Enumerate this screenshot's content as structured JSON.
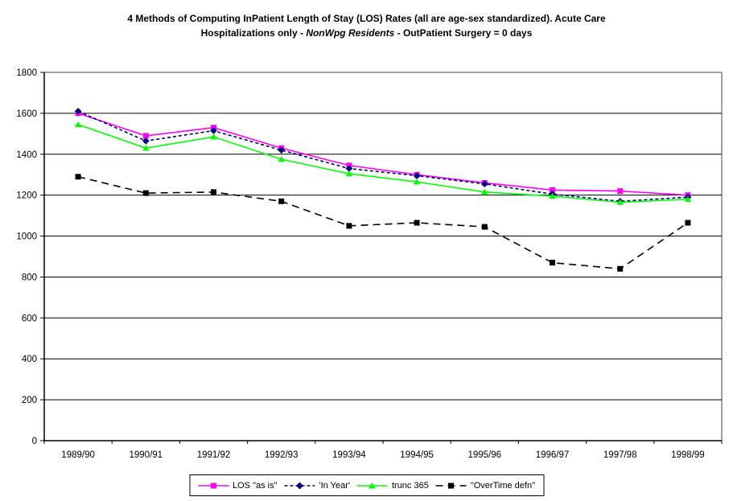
{
  "title": {
    "line1": "4 Methods of Computing InPatient Length of Stay (LOS) Rates (all are age-sex standardized). Acute Care",
    "line2_prefix": "Hospitalizations only - ",
    "line2_italic": "NonWpg Residents",
    "line2_suffix": " - OutPatient Surgery = 0 days"
  },
  "chart_data": {
    "type": "line",
    "categories": [
      "1989/90",
      "1990/91",
      "1991/92",
      "1992/93",
      "1993/94",
      "1994/95",
      "1995/96",
      "1996/97",
      "1997/98",
      "1998/99"
    ],
    "series": [
      {
        "name": "LOS \"as is\"",
        "color": "#FF00FF",
        "marker": "square",
        "line_style": "solid",
        "values": [
          1600,
          1490,
          1530,
          1430,
          1345,
          1300,
          1260,
          1225,
          1220,
          1200
        ]
      },
      {
        "name": "'In Year'",
        "color": "#000080",
        "marker": "diamond",
        "line_style": "dashed",
        "values": [
          1610,
          1465,
          1515,
          1420,
          1330,
          1295,
          1255,
          1205,
          1170,
          1190
        ]
      },
      {
        "name": "trunc 365",
        "color": "#00FF00",
        "marker": "triangle",
        "line_style": "solid",
        "values": [
          1545,
          1430,
          1485,
          1375,
          1305,
          1265,
          1215,
          1195,
          1165,
          1180
        ]
      },
      {
        "name": "\"OverTime defn\"",
        "color": "#000000",
        "marker": "square",
        "line_style": "dashed",
        "values": [
          1290,
          1210,
          1215,
          1170,
          1050,
          1065,
          1045,
          870,
          840,
          1065
        ]
      }
    ],
    "title": "4 Methods of Computing InPatient Length of Stay (LOS) Rates (all are age-sex standardized). Acute Care Hospitalizations only - NonWpg Residents - OutPatient Surgery = 0 days",
    "xlabel": "",
    "ylabel": "",
    "ylim": [
      0,
      1800
    ],
    "ytick_interval": 200,
    "yticks": [
      0,
      200,
      400,
      600,
      800,
      1000,
      1200,
      1400,
      1600,
      1800
    ],
    "grid": true,
    "legend_position": "bottom"
  },
  "colors": {
    "grid": "#000000",
    "axis": "#000000",
    "plot_border_top_right": "#808080",
    "background": "#ffffff",
    "text": "#000000"
  }
}
